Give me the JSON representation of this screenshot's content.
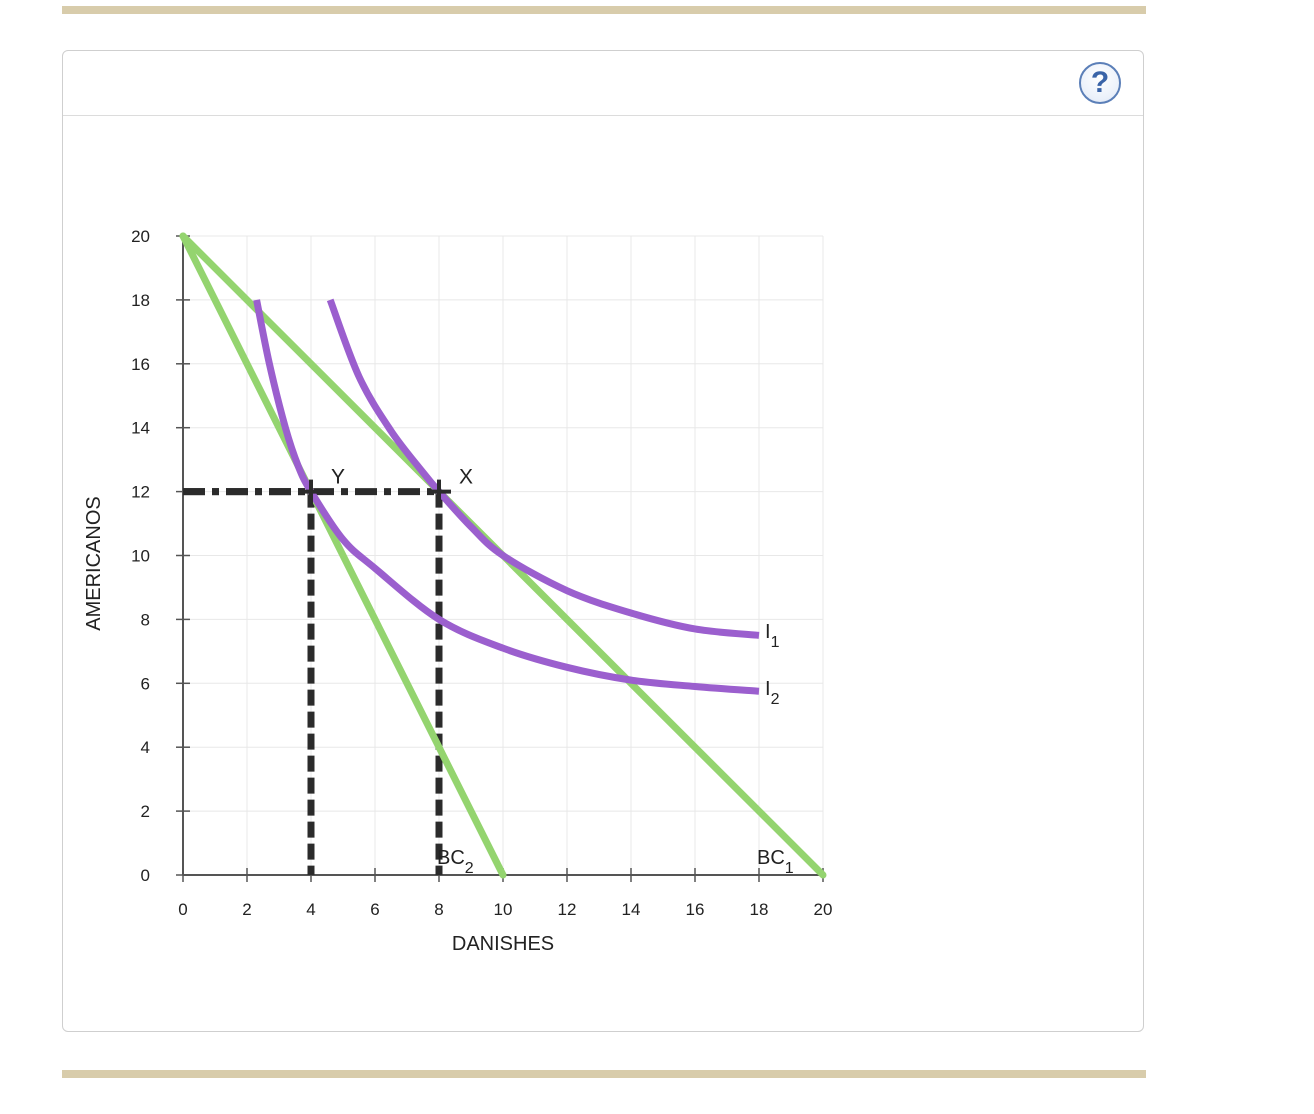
{
  "colors": {
    "rule": "#d8ccab",
    "budget": "#94d46f",
    "indiff": "#9b5fce",
    "guide": "#2b2b2b"
  },
  "help": {
    "label": "?",
    "icon": "help-question-icon"
  },
  "chart_data": {
    "type": "line",
    "title": "",
    "xlabel": "DANISHES",
    "ylabel": "AMERICANOS",
    "xlim": [
      0,
      20
    ],
    "ylim": [
      0,
      20
    ],
    "x_ticks": [
      0,
      2,
      4,
      6,
      8,
      10,
      12,
      14,
      16,
      18,
      20
    ],
    "y_ticks": [
      0,
      2,
      4,
      6,
      8,
      10,
      12,
      14,
      16,
      18,
      20
    ],
    "grid": true,
    "series": [
      {
        "name": "BC1",
        "label_main": "BC",
        "label_sub": "1",
        "kind": "budget",
        "points": [
          [
            0,
            20
          ],
          [
            20,
            0
          ]
        ]
      },
      {
        "name": "BC2",
        "label_main": "BC",
        "label_sub": "2",
        "kind": "budget",
        "points": [
          [
            0,
            20
          ],
          [
            10,
            0
          ]
        ]
      },
      {
        "name": "I1",
        "label_main": "I",
        "label_sub": "1",
        "kind": "indifference",
        "points": [
          [
            4.6,
            18.0
          ],
          [
            5.5,
            15.6
          ],
          [
            6.5,
            13.9
          ],
          [
            7.5,
            12.6
          ],
          [
            8.0,
            12.0
          ],
          [
            9.0,
            10.9
          ],
          [
            10.0,
            10.0
          ],
          [
            12.0,
            8.9
          ],
          [
            14.0,
            8.2
          ],
          [
            16.0,
            7.7
          ],
          [
            18.0,
            7.5
          ]
        ]
      },
      {
        "name": "I2",
        "label_main": "I",
        "label_sub": "2",
        "kind": "indifference",
        "points": [
          [
            2.3,
            18.0
          ],
          [
            2.7,
            16.0
          ],
          [
            3.2,
            14.0
          ],
          [
            3.6,
            12.8
          ],
          [
            4.0,
            12.0
          ],
          [
            5.0,
            10.5
          ],
          [
            6.0,
            9.6
          ],
          [
            8.0,
            8.0
          ],
          [
            10.0,
            7.1
          ],
          [
            12.0,
            6.5
          ],
          [
            14.0,
            6.1
          ],
          [
            16.0,
            5.9
          ],
          [
            18.0,
            5.75
          ]
        ]
      }
    ],
    "points": [
      {
        "name": "Y",
        "label": "Y",
        "x": 4,
        "y": 12
      },
      {
        "name": "X",
        "label": "X",
        "x": 8,
        "y": 12
      }
    ]
  }
}
